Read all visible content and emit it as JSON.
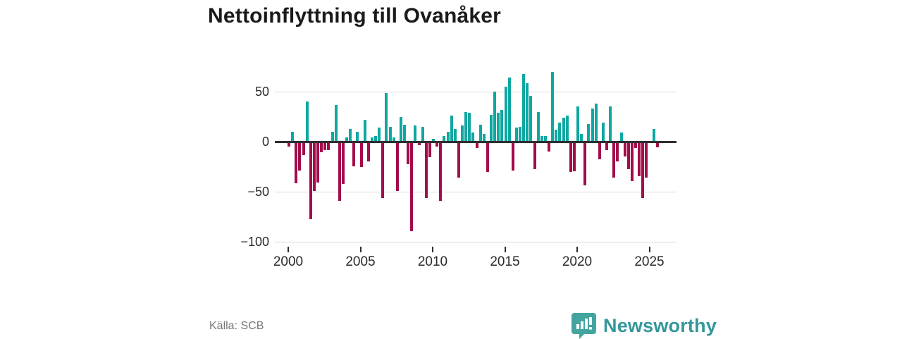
{
  "title": "Nettoinflyttning till Ovanåker",
  "footer": {
    "source": "Källa: SCB",
    "brand": "Newsworthy",
    "brand_color": "#44a49f"
  },
  "chart_data": {
    "type": "bar",
    "title": "Nettoinflyttning till Ovanåker",
    "frequency": "quarterly",
    "start_year": 2000,
    "start_quarter": 1,
    "x_tick_labels": [
      "2000",
      "2005",
      "2010",
      "2015",
      "2020",
      "2025"
    ],
    "y_ticks": [
      50,
      0,
      -50,
      -100
    ],
    "y_tick_labels": [
      "50",
      "0",
      "−50",
      "−100"
    ],
    "gridline_values": [
      50,
      -50,
      -100
    ],
    "ylim": [
      -100,
      75
    ],
    "legend": "none",
    "positive_color": "#0fa7a1",
    "negative_color": "#a30c4b",
    "values": [
      -4,
      10,
      -41,
      -28,
      -13,
      40,
      -77,
      -49,
      -40,
      -10,
      -8,
      -8,
      10,
      37,
      -59,
      -42,
      4,
      13,
      -24,
      10,
      -25,
      22,
      -19,
      4,
      6,
      14,
      -56,
      49,
      15,
      4,
      -49,
      25,
      17,
      -22,
      -89,
      16,
      -3,
      15,
      -56,
      -15,
      3,
      -4,
      -59,
      6,
      10,
      26,
      13,
      -35,
      16,
      30,
      29,
      9,
      -6,
      17,
      8,
      -30,
      27,
      50,
      29,
      32,
      55,
      64,
      -28,
      14,
      15,
      68,
      59,
      46,
      -27,
      30,
      6,
      6,
      -9,
      70,
      12,
      19,
      24,
      26,
      -30,
      -29,
      35,
      8,
      -43,
      18,
      33,
      38,
      -17,
      19,
      -8,
      35,
      -35,
      -19,
      9,
      -14,
      -27,
      -39,
      -6,
      -34,
      -56,
      -35,
      0,
      13,
      -5
    ]
  }
}
